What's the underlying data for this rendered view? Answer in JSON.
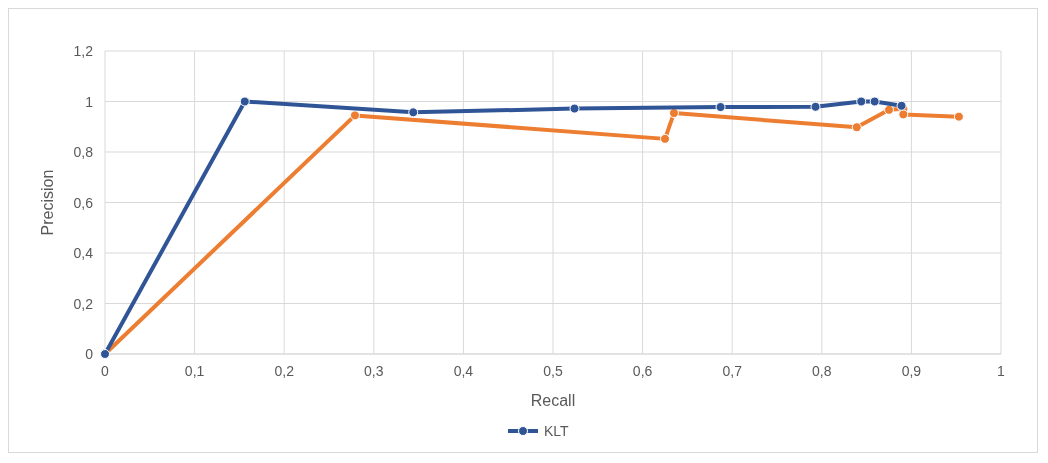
{
  "chart_data": {
    "type": "line",
    "xlabel": "Recall",
    "ylabel": "Precision",
    "marker": "circle",
    "grid": true,
    "legend": "bottom",
    "xlim": [
      0,
      1
    ],
    "ylim": [
      0,
      1.2
    ],
    "xticks": [
      0,
      {
        "value": 0.1,
        "label": "0,1"
      },
      {
        "value": 0.2,
        "label": "0,2"
      },
      {
        "value": 0.3,
        "label": "0,3"
      },
      {
        "value": 0.4,
        "label": "0,4"
      },
      {
        "value": 0.5,
        "label": "0,5"
      },
      {
        "value": 0.6,
        "label": "0,6"
      },
      {
        "value": 0.7,
        "label": "0,7"
      },
      {
        "value": 0.8,
        "label": "0,8"
      },
      {
        "value": 0.9,
        "label": "0,9"
      },
      1
    ],
    "yticks": [
      0,
      {
        "value": 0.2,
        "label": "0,2"
      },
      {
        "value": 0.4,
        "label": "0,4"
      },
      {
        "value": 0.6,
        "label": "0,6"
      },
      {
        "value": 0.8,
        "label": "0,8"
      },
      1,
      {
        "value": 1.2,
        "label": "1,2"
      }
    ],
    "series": [
      {
        "name": "KLT",
        "color": "#2f5597",
        "x": [
          0,
          0.156,
          0.344,
          0.524,
          0.687,
          0.793,
          0.844,
          0.859,
          0.889
        ],
        "values": [
          0,
          1.0,
          0.957,
          0.972,
          0.978,
          0.979,
          1.0,
          1.0,
          0.983
        ]
      },
      {
        "color": "#ed7d31",
        "x": [
          0,
          0.279,
          0.625,
          0.635,
          0.839,
          0.875,
          0.891,
          0.891,
          0.953
        ],
        "values": [
          0,
          0.945,
          0.852,
          0.954,
          0.898,
          0.967,
          0.971,
          0.949,
          0.94
        ]
      }
    ]
  }
}
